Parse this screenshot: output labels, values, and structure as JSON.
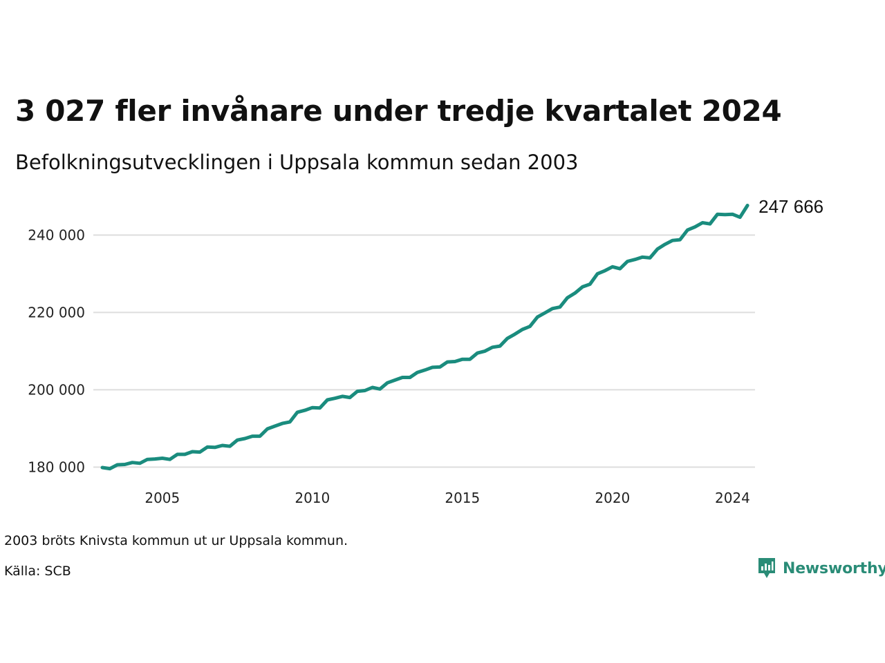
{
  "title": "3 027 fler invånare under tredje kvartalet 2024",
  "subtitle": "Befolkningsutvecklingen i Uppsala kommun sedan 2003",
  "note": "2003 bröts Knivsta kommun ut ur Uppsala kommun.",
  "source": "Källa: SCB",
  "brand": {
    "name": "Newsworthy",
    "icon": "newsworthy-logo-icon",
    "color": "#2a8c77"
  },
  "chart_data": {
    "type": "line",
    "color": "#1a8c7e",
    "gridlines": true,
    "xlim": [
      2003.0,
      2024.75
    ],
    "ylim": [
      174000,
      249000
    ],
    "y_ticks": [
      {
        "value": 180000,
        "label": "180 000"
      },
      {
        "value": 200000,
        "label": "200 000"
      },
      {
        "value": 220000,
        "label": "220 000"
      },
      {
        "value": 240000,
        "label": "240 000"
      }
    ],
    "x_ticks": [
      {
        "value": 2005,
        "label": "2005"
      },
      {
        "value": 2010,
        "label": "2010"
      },
      {
        "value": 2015,
        "label": "2015"
      },
      {
        "value": 2020,
        "label": "2020"
      },
      {
        "value": 2024,
        "label": "2024"
      }
    ],
    "last_value_label": "247 666",
    "series": [
      {
        "x_start": 2003.0,
        "x_step": 0.25,
        "values": [
          179900,
          179600,
          180600,
          180700,
          181200,
          181000,
          182000,
          182100,
          182300,
          182000,
          183300,
          183300,
          184000,
          183900,
          185200,
          185100,
          185600,
          185400,
          187000,
          187400,
          188000,
          188000,
          189900,
          190600,
          191300,
          191700,
          194200,
          194700,
          195400,
          195300,
          197400,
          197800,
          198300,
          198000,
          199600,
          199800,
          200600,
          200200,
          201800,
          202500,
          203200,
          203200,
          204500,
          205100,
          205800,
          205900,
          207200,
          207300,
          207900,
          207900,
          209500,
          210000,
          211000,
          211300,
          213300,
          214400,
          215600,
          216400,
          218800,
          219900,
          221000,
          221400,
          223800,
          225000,
          226600,
          227300,
          230000,
          230800,
          231800,
          231300,
          233200,
          233700,
          234300,
          234100,
          236400,
          237600,
          238600,
          238800,
          241300,
          242100,
          243200,
          242900,
          245400,
          245300,
          245400,
          244600,
          247666
        ]
      }
    ]
  }
}
